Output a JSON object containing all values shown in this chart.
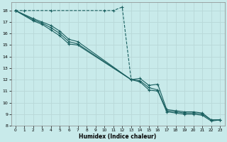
{
  "xlabel": "Humidex (Indice chaleur)",
  "bg_color": "#c8eaea",
  "grid_color": "#b8d8d8",
  "line_color": "#1a6060",
  "xlim": [
    -0.5,
    23.5
  ],
  "ylim": [
    8,
    18.7
  ],
  "yticks": [
    8,
    9,
    10,
    11,
    12,
    13,
    14,
    15,
    16,
    17,
    18
  ],
  "xticks": [
    0,
    1,
    2,
    3,
    4,
    5,
    6,
    7,
    8,
    9,
    10,
    11,
    12,
    13,
    14,
    15,
    16,
    17,
    18,
    19,
    20,
    21,
    22,
    23
  ],
  "series": [
    {
      "x": [
        0,
        1,
        4,
        10,
        11,
        12,
        13
      ],
      "y": [
        18,
        18,
        18,
        18,
        18,
        18.3,
        12
      ],
      "linestyle": "--",
      "marker": "+"
    },
    {
      "x": [
        0,
        2,
        3,
        4,
        5,
        6,
        7,
        13,
        14,
        15,
        16,
        17,
        18,
        19,
        20,
        21,
        22,
        23
      ],
      "y": [
        18,
        17.3,
        17.0,
        16.7,
        16.2,
        15.5,
        15.3,
        12.0,
        12.1,
        11.5,
        11.6,
        9.4,
        9.3,
        9.2,
        9.2,
        9.1,
        8.5,
        8.5
      ],
      "linestyle": "-",
      "marker": "+"
    },
    {
      "x": [
        0,
        2,
        3,
        4,
        5,
        6,
        7,
        13,
        14,
        15,
        16,
        17,
        18,
        19,
        20,
        21,
        22,
        23
      ],
      "y": [
        18,
        17.2,
        16.9,
        16.5,
        16.0,
        15.3,
        15.1,
        12.0,
        11.9,
        11.3,
        11.1,
        9.3,
        9.2,
        9.1,
        9.1,
        9.0,
        8.5,
        8.5
      ],
      "linestyle": "-",
      "marker": "+"
    },
    {
      "x": [
        0,
        2,
        3,
        4,
        5,
        6,
        7,
        13,
        14,
        15,
        16,
        17,
        18,
        19,
        20,
        21,
        22,
        23
      ],
      "y": [
        18,
        17.1,
        16.8,
        16.3,
        15.8,
        15.1,
        15.0,
        12.0,
        11.8,
        11.1,
        11.0,
        9.2,
        9.1,
        9.0,
        9.0,
        8.9,
        8.4,
        8.5
      ],
      "linestyle": "-",
      "marker": "+"
    }
  ]
}
